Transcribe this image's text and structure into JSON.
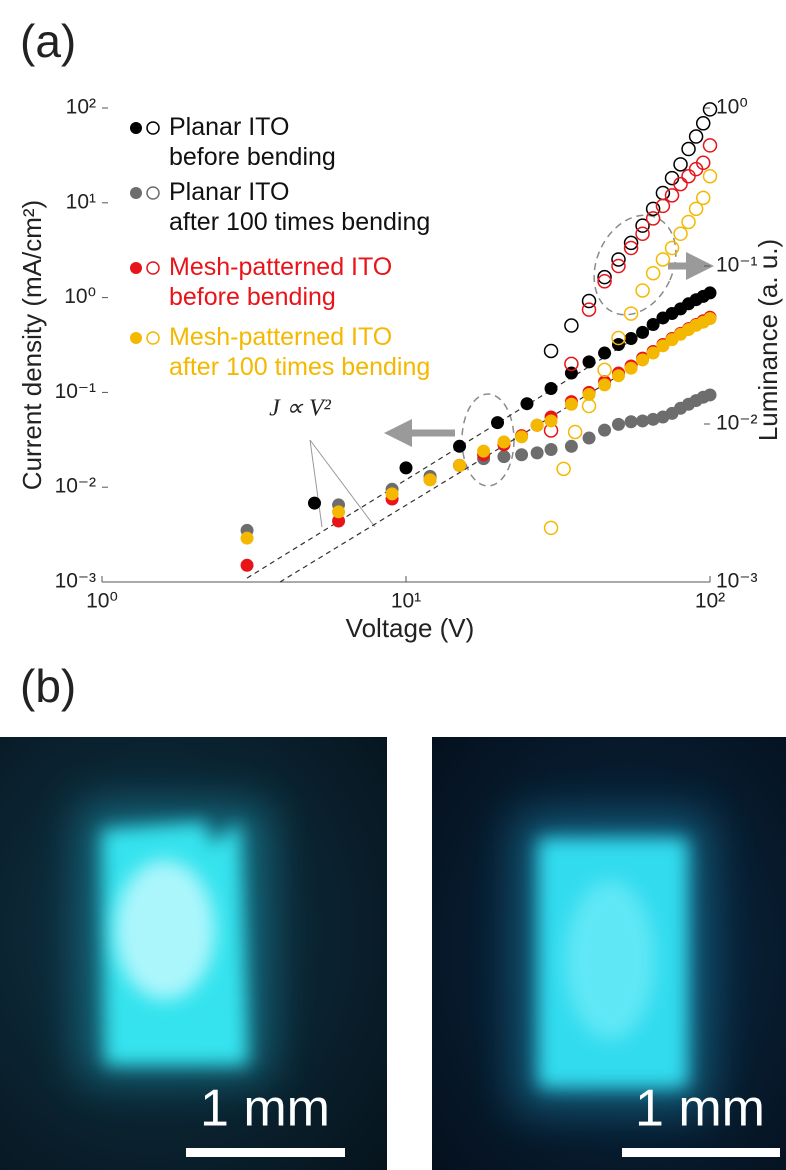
{
  "panel_a": {
    "label": "(a)"
  },
  "panel_b": {
    "label": "(b)",
    "scale_bars": [
      "1 mm",
      "1 mm"
    ]
  },
  "chart_data": {
    "type": "scatter",
    "xlabel": "Voltage (V)",
    "ylabel": "Current density (mA/cm²)",
    "y2label": "Luminance (a. u.)",
    "xscale": "log",
    "yscale": "log",
    "y2scale": "log",
    "xlim": [
      1,
      100
    ],
    "ylim": [
      0.001,
      100
    ],
    "y2lim": [
      0.001,
      1
    ],
    "xticks": [
      {
        "value": 1,
        "label": "10⁰"
      },
      {
        "value": 10,
        "label": "10¹"
      },
      {
        "value": 100,
        "label": "10²"
      }
    ],
    "yticks": [
      {
        "value": 0.001,
        "label": "10⁻³"
      },
      {
        "value": 0.01,
        "label": "10⁻²"
      },
      {
        "value": 0.1,
        "label": "10⁻¹"
      },
      {
        "value": 1,
        "label": "10⁰"
      },
      {
        "value": 10,
        "label": "10¹"
      },
      {
        "value": 100,
        "label": "10²"
      }
    ],
    "y2ticks": [
      {
        "value": 0.001,
        "label": "10⁻³"
      },
      {
        "value": 0.01,
        "label": "10⁻²"
      },
      {
        "value": 0.1,
        "label": "10⁻¹"
      },
      {
        "value": 1,
        "label": "10⁰"
      }
    ],
    "grid": false,
    "legend": "upper left",
    "annotation": "J ∝ V²",
    "reference_lines": [
      {
        "x": [
          3,
          100
        ],
        "values": [
          0.0011,
          1.15
        ]
      },
      {
        "x": [
          3.85,
          100
        ],
        "values": [
          0.001,
          0.58
        ]
      }
    ],
    "series": [
      {
        "name": "Planar ITO\nbefore bending",
        "color": "#000000",
        "label_color": "#111111",
        "x": [
          5,
          10,
          15,
          20,
          25,
          30,
          35,
          40,
          45,
          50,
          55,
          60,
          65,
          70,
          75,
          80,
          85,
          90,
          95,
          100
        ],
        "values": [
          0.0068,
          0.016,
          0.027,
          0.048,
          0.076,
          0.11,
          0.16,
          0.21,
          0.26,
          0.32,
          0.37,
          0.43,
          0.52,
          0.61,
          0.68,
          0.76,
          0.86,
          0.95,
          1.03,
          1.12
        ],
        "y2_x": [
          30,
          35,
          40,
          45,
          50,
          55,
          60,
          65,
          70,
          75,
          80,
          85,
          90,
          95,
          100
        ],
        "y2_values": [
          0.029,
          0.042,
          0.06,
          0.085,
          0.11,
          0.14,
          0.18,
          0.23,
          0.29,
          0.36,
          0.44,
          0.55,
          0.66,
          0.8,
          0.98
        ]
      },
      {
        "name": "Planar ITO\nafter 100 times bending",
        "color": "#6d6d6d",
        "label_color": "#111111",
        "x": [
          3,
          6,
          9,
          12,
          15,
          18,
          21,
          24,
          27,
          30,
          35,
          40,
          45,
          50,
          55,
          60,
          65,
          70,
          75,
          80,
          85,
          90,
          95,
          100
        ],
        "values": [
          0.0035,
          0.0065,
          0.0095,
          0.013,
          0.017,
          0.02,
          0.021,
          0.022,
          0.023,
          0.025,
          0.027,
          0.033,
          0.04,
          0.046,
          0.049,
          0.05,
          0.052,
          0.055,
          0.06,
          0.068,
          0.075,
          0.082,
          0.089,
          0.094
        ],
        "y2_x": [],
        "y2_values": []
      },
      {
        "name": "Mesh-patterned ITO\nbefore bending",
        "color": "#e8141a",
        "label_color": "#e8141a",
        "x": [
          3,
          6,
          9,
          12,
          15,
          18,
          21,
          24,
          27,
          30,
          35,
          40,
          45,
          50,
          55,
          60,
          65,
          70,
          75,
          80,
          85,
          90,
          95,
          100
        ],
        "values": [
          0.0015,
          0.0044,
          0.0075,
          0.012,
          0.017,
          0.022,
          0.028,
          0.035,
          0.045,
          0.055,
          0.08,
          0.1,
          0.13,
          0.16,
          0.19,
          0.23,
          0.27,
          0.32,
          0.37,
          0.42,
          0.47,
          0.52,
          0.57,
          0.62
        ],
        "y2_x": [
          30,
          35,
          40,
          45,
          50,
          55,
          60,
          65,
          70,
          75,
          80,
          85,
          90,
          95,
          100
        ],
        "y2_values": [
          0.0091,
          0.024,
          0.053,
          0.08,
          0.1,
          0.13,
          0.16,
          0.2,
          0.24,
          0.28,
          0.33,
          0.37,
          0.41,
          0.45,
          0.58
        ]
      },
      {
        "name": "Mesh-patterned ITO\nafter 100 times bending",
        "color": "#f5b800",
        "label_color": "#f5b800",
        "x": [
          3,
          6,
          9,
          12,
          15,
          18,
          21,
          24,
          27,
          30,
          35,
          40,
          45,
          50,
          55,
          60,
          65,
          70,
          75,
          80,
          85,
          90,
          95,
          100
        ],
        "values": [
          0.0029,
          0.0055,
          0.0085,
          0.012,
          0.017,
          0.024,
          0.03,
          0.034,
          0.045,
          0.05,
          0.075,
          0.095,
          0.12,
          0.15,
          0.18,
          0.22,
          0.26,
          0.31,
          0.36,
          0.41,
          0.46,
          0.51,
          0.55,
          0.6
        ],
        "y2_x": [
          30,
          33,
          36,
          40,
          45,
          50,
          55,
          60,
          65,
          70,
          75,
          80,
          85,
          90,
          95,
          100
        ],
        "y2_values": [
          0.0022,
          0.0052,
          0.0089,
          0.013,
          0.022,
          0.035,
          0.05,
          0.07,
          0.09,
          0.11,
          0.13,
          0.16,
          0.19,
          0.23,
          0.27,
          0.37
        ]
      }
    ]
  }
}
